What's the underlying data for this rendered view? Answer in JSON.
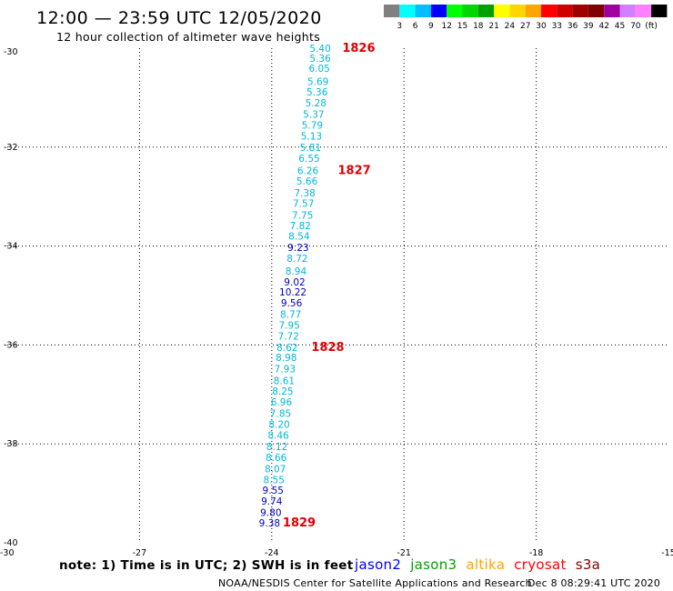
{
  "title": "12:00 — 23:59 UTC 12/05/2020",
  "subtitle": "12 hour collection of altimeter wave heights",
  "colorbar": {
    "colors": [
      "#808080",
      "#00ffff",
      "#00bfff",
      "#0000ff",
      "#00ff00",
      "#00d700",
      "#00a000",
      "#ffff00",
      "#ffd700",
      "#ffa500",
      "#ff0000",
      "#d00000",
      "#a00000",
      "#800000",
      "#a000a0",
      "#d080ff",
      "#ff80ff",
      "#000000"
    ],
    "labels": [
      "3",
      "6",
      "9",
      "12",
      "15",
      "18",
      "21",
      "24",
      "27",
      "30",
      "33",
      "36",
      "39",
      "42",
      "45",
      "70",
      "(ft)"
    ]
  },
  "axes": {
    "lon_ticks": [
      "-27",
      "-24",
      "-21",
      "-18",
      "-15"
    ],
    "lat_ticks": [
      "-32",
      "-34",
      "-36",
      "-38",
      "-40"
    ],
    "corner_top": "-30",
    "corner_bottom": "-30"
  },
  "chart_data": {
    "type": "scatter",
    "xlim": [
      -30,
      -15
    ],
    "ylim": [
      -40,
      -30
    ],
    "x_ticks": [
      -27,
      -24,
      -21,
      -18,
      -15
    ],
    "y_ticks": [
      -32,
      -34,
      -36,
      -38,
      -40
    ],
    "grid": true,
    "units": "ft",
    "color_for_value": [
      {
        "max": 9,
        "color": "#00b8d8"
      },
      {
        "max": 100,
        "color": "#0000c0"
      }
    ],
    "observations": [
      {
        "lon": -22.9,
        "lat": -30.0,
        "value": "5.40"
      },
      {
        "lon": -22.9,
        "lat": -30.2,
        "value": "5.36"
      },
      {
        "lon": -22.92,
        "lat": -30.4,
        "value": "6.05"
      },
      {
        "lon": -22.95,
        "lat": -30.67,
        "value": "5.69"
      },
      {
        "lon": -22.97,
        "lat": -30.88,
        "value": "5.36"
      },
      {
        "lon": -23.0,
        "lat": -31.1,
        "value": "5.28"
      },
      {
        "lon": -23.05,
        "lat": -31.33,
        "value": "5.37"
      },
      {
        "lon": -23.08,
        "lat": -31.55,
        "value": "5.79"
      },
      {
        "lon": -23.1,
        "lat": -31.77,
        "value": "5.13"
      },
      {
        "lon": -23.12,
        "lat": -32.0,
        "value": "5.81"
      },
      {
        "lon": -23.15,
        "lat": -32.22,
        "value": "6.55"
      },
      {
        "lon": -23.18,
        "lat": -32.47,
        "value": "6.26"
      },
      {
        "lon": -23.2,
        "lat": -32.68,
        "value": "5.66"
      },
      {
        "lon": -23.25,
        "lat": -32.92,
        "value": "7.38"
      },
      {
        "lon": -23.28,
        "lat": -33.13,
        "value": "7.57"
      },
      {
        "lon": -23.3,
        "lat": -33.37,
        "value": "7.75"
      },
      {
        "lon": -23.35,
        "lat": -33.58,
        "value": "7.82"
      },
      {
        "lon": -23.38,
        "lat": -33.8,
        "value": "8.54"
      },
      {
        "lon": -23.4,
        "lat": -34.03,
        "value": "9.23"
      },
      {
        "lon": -23.42,
        "lat": -34.25,
        "value": "8.72"
      },
      {
        "lon": -23.45,
        "lat": -34.5,
        "value": "8.94"
      },
      {
        "lon": -23.48,
        "lat": -34.72,
        "value": "9.02"
      },
      {
        "lon": -23.52,
        "lat": -34.93,
        "value": "10.22"
      },
      {
        "lon": -23.55,
        "lat": -35.15,
        "value": "9.56"
      },
      {
        "lon": -23.57,
        "lat": -35.38,
        "value": "8.77"
      },
      {
        "lon": -23.6,
        "lat": -35.6,
        "value": "7.95"
      },
      {
        "lon": -23.62,
        "lat": -35.82,
        "value": "7.72"
      },
      {
        "lon": -23.65,
        "lat": -36.05,
        "value": "8.62"
      },
      {
        "lon": -23.67,
        "lat": -36.25,
        "value": "8.98"
      },
      {
        "lon": -23.7,
        "lat": -36.48,
        "value": "7.93"
      },
      {
        "lon": -23.72,
        "lat": -36.72,
        "value": "8.61"
      },
      {
        "lon": -23.75,
        "lat": -36.93,
        "value": "8.25"
      },
      {
        "lon": -23.78,
        "lat": -37.15,
        "value": "6.96"
      },
      {
        "lon": -23.8,
        "lat": -37.38,
        "value": "7.85"
      },
      {
        "lon": -23.83,
        "lat": -37.6,
        "value": "8.20"
      },
      {
        "lon": -23.85,
        "lat": -37.82,
        "value": "8.46"
      },
      {
        "lon": -23.88,
        "lat": -38.05,
        "value": "8.12"
      },
      {
        "lon": -23.9,
        "lat": -38.27,
        "value": "8.66"
      },
      {
        "lon": -23.92,
        "lat": -38.5,
        "value": "8.07"
      },
      {
        "lon": -23.95,
        "lat": -38.72,
        "value": "8.55"
      },
      {
        "lon": -23.97,
        "lat": -38.93,
        "value": "9.55"
      },
      {
        "lon": -24.0,
        "lat": -39.15,
        "value": "9.74"
      },
      {
        "lon": -24.02,
        "lat": -39.38,
        "value": "9.80"
      },
      {
        "lon": -24.05,
        "lat": -39.6,
        "value": "9.38"
      }
    ],
    "time_labels": [
      {
        "lon": -22.4,
        "lat": -30.0,
        "label": "1826"
      },
      {
        "lon": -22.5,
        "lat": -32.47,
        "label": "1827"
      },
      {
        "lon": -23.1,
        "lat": -36.05,
        "label": "1828"
      },
      {
        "lon": -23.75,
        "lat": -39.6,
        "label": "1829"
      }
    ]
  },
  "note": "note: 1) Time is in UTC; 2) SWH is in feet",
  "satellites": [
    {
      "name": "jason2",
      "color": "#0000ff"
    },
    {
      "name": "jason3",
      "color": "#00a000"
    },
    {
      "name": "altika",
      "color": "#ffa500"
    },
    {
      "name": "cryosat",
      "color": "#ff0000"
    },
    {
      "name": "s3a",
      "color": "#800000"
    }
  ],
  "footer_left": "NOAA/NESDIS Center for Satellite Applications and Research",
  "footer_right": "Dec  8 08:29:41 UTC 2020"
}
